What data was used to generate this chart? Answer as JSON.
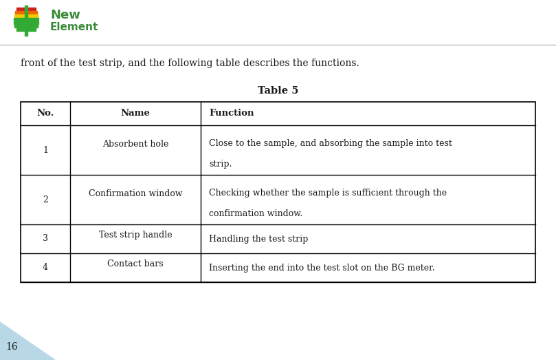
{
  "intro_text": "front of the test strip, and the following table describes the functions.",
  "table_title": "Table 5",
  "headers": [
    "No.",
    "Name",
    "Function"
  ],
  "rows": [
    [
      "1",
      "Absorbent hole",
      "Close to the sample, and absorbing the sample into test\nstrip."
    ],
    [
      "2",
      "Confirmation window",
      "Checking whether the sample is sufficient through the\nconfirmation window."
    ],
    [
      "3",
      "Test strip handle",
      "Handling the test strip"
    ],
    [
      "4",
      "Contact bars",
      "Inserting the end into the test slot on the BG meter."
    ]
  ],
  "background_color": "#ffffff",
  "text_color": "#1a1a1a",
  "border_color": "#000000",
  "font_size": 9.0,
  "header_font_size": 9.5,
  "title_font_size": 10.5,
  "intro_font_size": 10.0,
  "page_number": "16",
  "triangle_color": "#b8d8e8",
  "logo_green": "#3a8a3a",
  "separator_color": "#aaaaaa"
}
